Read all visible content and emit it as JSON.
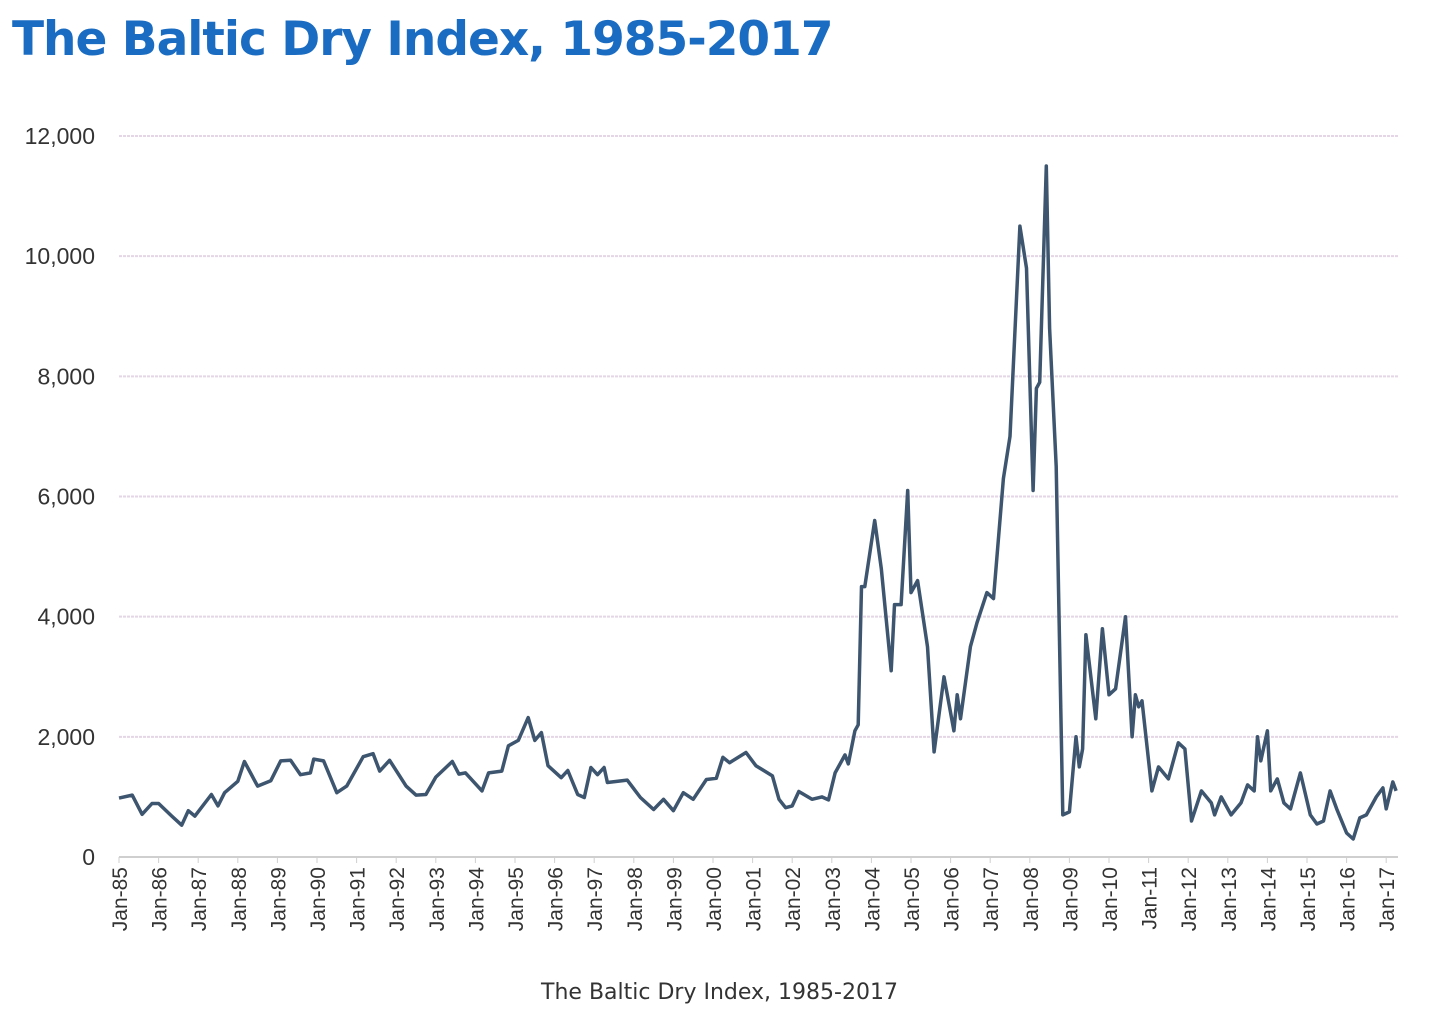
{
  "title": "The Baltic Dry Index, 1985-2017",
  "caption": "The Baltic Dry Index, 1985-2017",
  "chart_data": {
    "type": "line",
    "title": "The Baltic Dry Index, 1985-2017",
    "xlabel": "",
    "ylabel": "",
    "ylim": [
      0,
      12000
    ],
    "yticks": [
      "0",
      "2,000",
      "4,000",
      "6,000",
      "8,000",
      "10,000",
      "12,000"
    ],
    "xticks": [
      "Jan-85",
      "Jan-86",
      "Jan-87",
      "Jan-88",
      "Jan-89",
      "Jan-90",
      "Jan-91",
      "Jan-92",
      "Jan-93",
      "Jan-94",
      "Jan-95",
      "Jan-96",
      "Jan-97",
      "Jan-98",
      "Jan-99",
      "Jan-00",
      "Jan-01",
      "Jan-02",
      "Jan-03",
      "Jan-04",
      "Jan-05",
      "Jan-06",
      "Jan-07",
      "Jan-08",
      "Jan-09",
      "Jan-10",
      "Jan-11",
      "Jan-12",
      "Jan-13",
      "Jan-14",
      "Jan-15",
      "Jan-16",
      "Jan-17"
    ],
    "grid": true,
    "line_color": "#3d556e",
    "title_color": "#1a6cc2",
    "series": [
      {
        "x": [
          "1985-01",
          "1985-05",
          "1985-08",
          "1985-11",
          "1986-01",
          "1986-05",
          "1986-08",
          "1986-10",
          "1986-12",
          "1987-05",
          "1987-07",
          "1987-09",
          "1988-01",
          "1988-03",
          "1988-07",
          "1988-11",
          "1989-02",
          "1989-05",
          "1989-08",
          "1989-11",
          "1989-12",
          "1990-03",
          "1990-07",
          "1990-10",
          "1991-03",
          "1991-06",
          "1991-08",
          "1991-11",
          "1992-04",
          "1992-07",
          "1992-10",
          "1993-01",
          "1993-06",
          "1993-08",
          "1993-10",
          "1994-03",
          "1994-05",
          "1994-09",
          "1994-11",
          "1995-02",
          "1995-05",
          "1995-07",
          "1995-09",
          "1995-11",
          "1996-03",
          "1996-05",
          "1996-08",
          "1996-10",
          "1996-12",
          "1997-02",
          "1997-04",
          "1997-05",
          "1997-11",
          "1998-03",
          "1998-07",
          "1998-10",
          "1999-01",
          "1999-04",
          "1999-07",
          "1999-11",
          "2000-02",
          "2000-04",
          "2000-06",
          "2000-11",
          "2001-02",
          "2001-07",
          "2001-09",
          "2001-11",
          "2002-01",
          "2002-03",
          "2002-07",
          "2002-10",
          "2002-12",
          "2003-02",
          "2003-05",
          "2003-06",
          "2003-08",
          "2003-09",
          "2003-10",
          "2003-11",
          "2004-02",
          "2004-04",
          "2004-07",
          "2004-08",
          "2004-10",
          "2004-12",
          "2005-01",
          "2005-03",
          "2005-06",
          "2005-08",
          "2005-11",
          "2006-02",
          "2006-03",
          "2006-04",
          "2006-07",
          "2006-09",
          "2006-12",
          "2007-02",
          "2007-05",
          "2007-07",
          "2007-10",
          "2007-12",
          "2008-02",
          "2008-03",
          "2008-04",
          "2008-06",
          "2008-07",
          "2008-09",
          "2008-11",
          "2009-01",
          "2009-03",
          "2009-04",
          "2009-05",
          "2009-06",
          "2009-09",
          "2009-11",
          "2010-01",
          "2010-03",
          "2010-06",
          "2010-08",
          "2010-09",
          "2010-10",
          "2010-11",
          "2011-02",
          "2011-04",
          "2011-07",
          "2011-10",
          "2011-12",
          "2012-02",
          "2012-05",
          "2012-08",
          "2012-09",
          "2012-11",
          "2013-02",
          "2013-05",
          "2013-07",
          "2013-09",
          "2013-10",
          "2013-11",
          "2014-01",
          "2014-02",
          "2014-04",
          "2014-06",
          "2014-08",
          "2014-11",
          "2015-02",
          "2015-04",
          "2015-06",
          "2015-08",
          "2015-10",
          "2016-01",
          "2016-03",
          "2016-05",
          "2016-07",
          "2016-10",
          "2016-12",
          "2017-01",
          "2017-03",
          "2017-04"
        ],
        "y": [
          980,
          1030,
          710,
          890,
          890,
          680,
          530,
          770,
          680,
          1040,
          850,
          1070,
          1260,
          1590,
          1180,
          1270,
          1600,
          1610,
          1370,
          1400,
          1630,
          1600,
          1070,
          1180,
          1670,
          1720,
          1430,
          1610,
          1180,
          1030,
          1040,
          1330,
          1590,
          1380,
          1400,
          1100,
          1400,
          1430,
          1850,
          1940,
          2320,
          1940,
          2070,
          1520,
          1320,
          1440,
          1040,
          990,
          1490,
          1370,
          1490,
          1240,
          1280,
          990,
          790,
          960,
          770,
          1070,
          960,
          1290,
          1310,
          1660,
          1570,
          1740,
          1520,
          1350,
          960,
          820,
          850,
          1090,
          960,
          1000,
          950,
          1400,
          1700,
          1550,
          2100,
          2200,
          4500,
          4500,
          5600,
          4800,
          3100,
          4200,
          4200,
          6100,
          4400,
          4600,
          3500,
          1750,
          3000,
          2100,
          2700,
          2300,
          3500,
          3900,
          4400,
          4300,
          6300,
          7000,
          10500,
          9800,
          6100,
          7800,
          7900,
          11500,
          8800,
          6500,
          700,
          750,
          2000,
          1500,
          1800,
          3700,
          2300,
          3800,
          2700,
          2800,
          4000,
          2000,
          2700,
          2500,
          2600,
          1100,
          1500,
          1300,
          1900,
          1800,
          600,
          1100,
          900,
          700,
          1000,
          700,
          900,
          1200,
          1100,
          2000,
          1600,
          2100,
          1100,
          1300,
          900,
          800,
          1400,
          700,
          550,
          600,
          1100,
          800,
          400,
          300,
          650,
          700,
          1000,
          1150,
          800,
          1250,
          1100
        ]
      }
    ]
  }
}
